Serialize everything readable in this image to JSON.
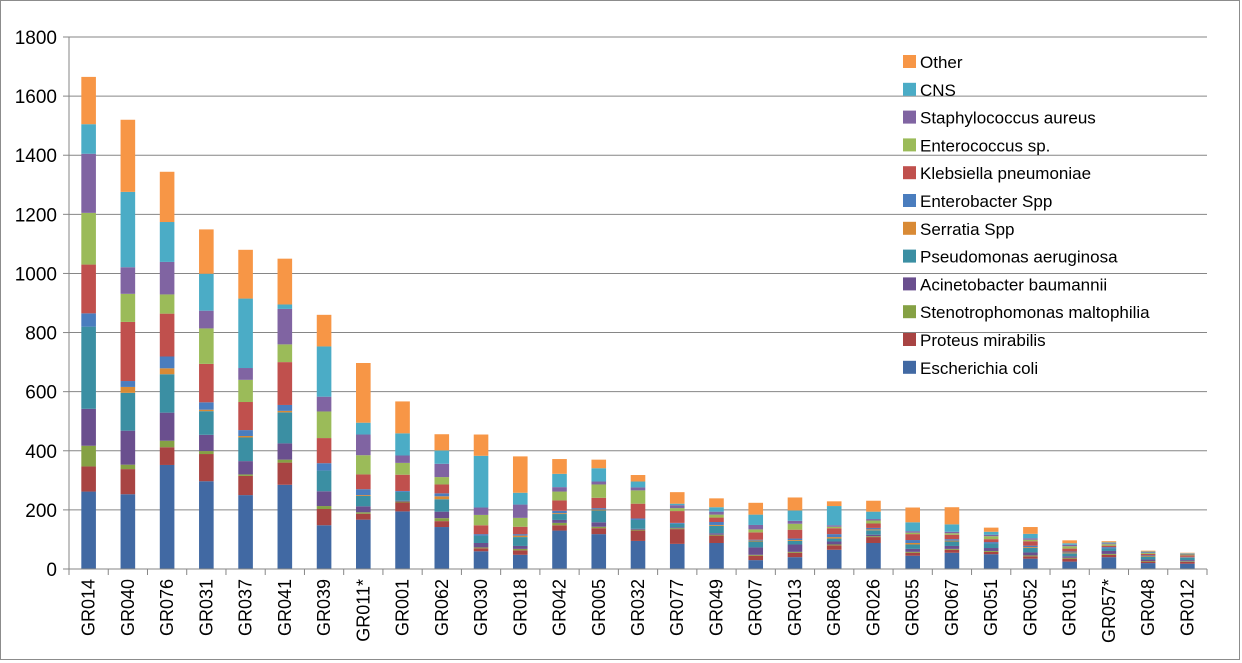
{
  "chart_data": {
    "type": "bar",
    "stacked": true,
    "title": "",
    "xlabel": "",
    "ylabel": "",
    "ylim": [
      0,
      1800
    ],
    "yticks": [
      0,
      200,
      400,
      600,
      800,
      1000,
      1200,
      1400,
      1600,
      1800
    ],
    "grid": "horizontal",
    "legend_position": "right",
    "categories": [
      "GR014",
      "GR040",
      "GR076",
      "GR031",
      "GR037",
      "GR041",
      "GR039",
      "GR011*",
      "GR001",
      "GR062",
      "GR030",
      "GR018",
      "GR042",
      "GR005",
      "GR032",
      "GR077",
      "GR049",
      "GR007",
      "GR013",
      "GR068",
      "GR026",
      "GR055",
      "GR067",
      "GR051",
      "GR052",
      "GR015",
      "GR057*",
      "GR048",
      "GR012"
    ],
    "series": [
      {
        "name": "Escherichia coli",
        "color": "#4169a3",
        "values": [
          262,
          253,
          352,
          297,
          250,
          285,
          148,
          167,
          195,
          142,
          60,
          48,
          130,
          118,
          95,
          85,
          88,
          30,
          40,
          65,
          88,
          45,
          55,
          50,
          35,
          25,
          40,
          20,
          18
        ]
      },
      {
        "name": "Proteus mirabilis",
        "color": "#a84443",
        "values": [
          85,
          85,
          60,
          92,
          65,
          75,
          55,
          20,
          30,
          20,
          10,
          15,
          18,
          20,
          35,
          50,
          25,
          15,
          15,
          15,
          20,
          10,
          10,
          8,
          8,
          10,
          8,
          5,
          6
        ]
      },
      {
        "name": "Stenotrophomonas maltophilia",
        "color": "#85a144",
        "values": [
          70,
          15,
          22,
          10,
          5,
          10,
          10,
          5,
          3,
          10,
          3,
          5,
          8,
          5,
          3,
          3,
          3,
          3,
          3,
          3,
          3,
          3,
          3,
          3,
          3,
          3,
          3,
          2,
          2
        ]
      },
      {
        "name": "Acinetobacter baumannii",
        "color": "#6a4f8e",
        "values": [
          125,
          115,
          95,
          55,
          45,
          55,
          50,
          20,
          3,
          22,
          15,
          10,
          10,
          15,
          3,
          3,
          5,
          25,
          25,
          10,
          5,
          10,
          10,
          10,
          10,
          5,
          10,
          5,
          4
        ]
      },
      {
        "name": "Pseudomonas aeruginosa",
        "color": "#3b8fa3",
        "values": [
          278,
          128,
          130,
          80,
          80,
          105,
          70,
          35,
          30,
          42,
          25,
          30,
          20,
          40,
          30,
          12,
          25,
          20,
          12,
          10,
          15,
          15,
          15,
          15,
          15,
          10,
          8,
          10,
          8
        ]
      },
      {
        "name": "Serratia Spp",
        "color": "#d98a35",
        "values": [
          0,
          20,
          20,
          5,
          5,
          5,
          0,
          3,
          0,
          10,
          0,
          5,
          3,
          3,
          0,
          0,
          3,
          3,
          3,
          5,
          3,
          5,
          3,
          0,
          3,
          3,
          0,
          2,
          1
        ]
      },
      {
        "name": "Enterobacter Spp",
        "color": "#4a7dbe",
        "values": [
          45,
          20,
          40,
          25,
          20,
          20,
          25,
          20,
          3,
          10,
          5,
          5,
          8,
          5,
          5,
          3,
          10,
          3,
          5,
          10,
          5,
          10,
          5,
          5,
          5,
          3,
          5,
          2,
          2
        ]
      },
      {
        "name": "Klebsiella pneumoniae",
        "color": "#c0504d",
        "values": [
          165,
          200,
          145,
          130,
          95,
          145,
          85,
          50,
          55,
          30,
          30,
          25,
          35,
          35,
          50,
          40,
          15,
          25,
          30,
          20,
          15,
          20,
          15,
          10,
          15,
          10,
          5,
          5,
          5
        ]
      },
      {
        "name": "Enterococcus sp.",
        "color": "#9bbb59",
        "values": [
          175,
          95,
          65,
          120,
          75,
          60,
          90,
          65,
          40,
          25,
          35,
          30,
          30,
          45,
          45,
          10,
          10,
          10,
          20,
          5,
          10,
          5,
          5,
          10,
          5,
          8,
          5,
          3,
          3
        ]
      },
      {
        "name": "Staphylococcus aureus",
        "color": "#8064a2",
        "values": [
          200,
          90,
          110,
          60,
          40,
          120,
          50,
          70,
          25,
          45,
          25,
          45,
          15,
          10,
          10,
          10,
          10,
          15,
          10,
          5,
          5,
          5,
          5,
          5,
          5,
          5,
          3,
          2,
          2
        ]
      },
      {
        "name": "CNS",
        "color": "#4bacc6",
        "values": [
          100,
          255,
          135,
          125,
          235,
          15,
          170,
          40,
          75,
          45,
          175,
          40,
          45,
          45,
          20,
          5,
          15,
          35,
          35,
          65,
          25,
          30,
          25,
          10,
          15,
          5,
          3,
          3,
          2
        ]
      },
      {
        "name": "Other",
        "color": "#f79646",
        "values": [
          160,
          244,
          170,
          150,
          165,
          155,
          107,
          202,
          108,
          55,
          72,
          123,
          50,
          29,
          22,
          39,
          30,
          40,
          44,
          16,
          37,
          50,
          58,
          14,
          23,
          10,
          4,
          3,
          2
        ]
      }
    ]
  }
}
